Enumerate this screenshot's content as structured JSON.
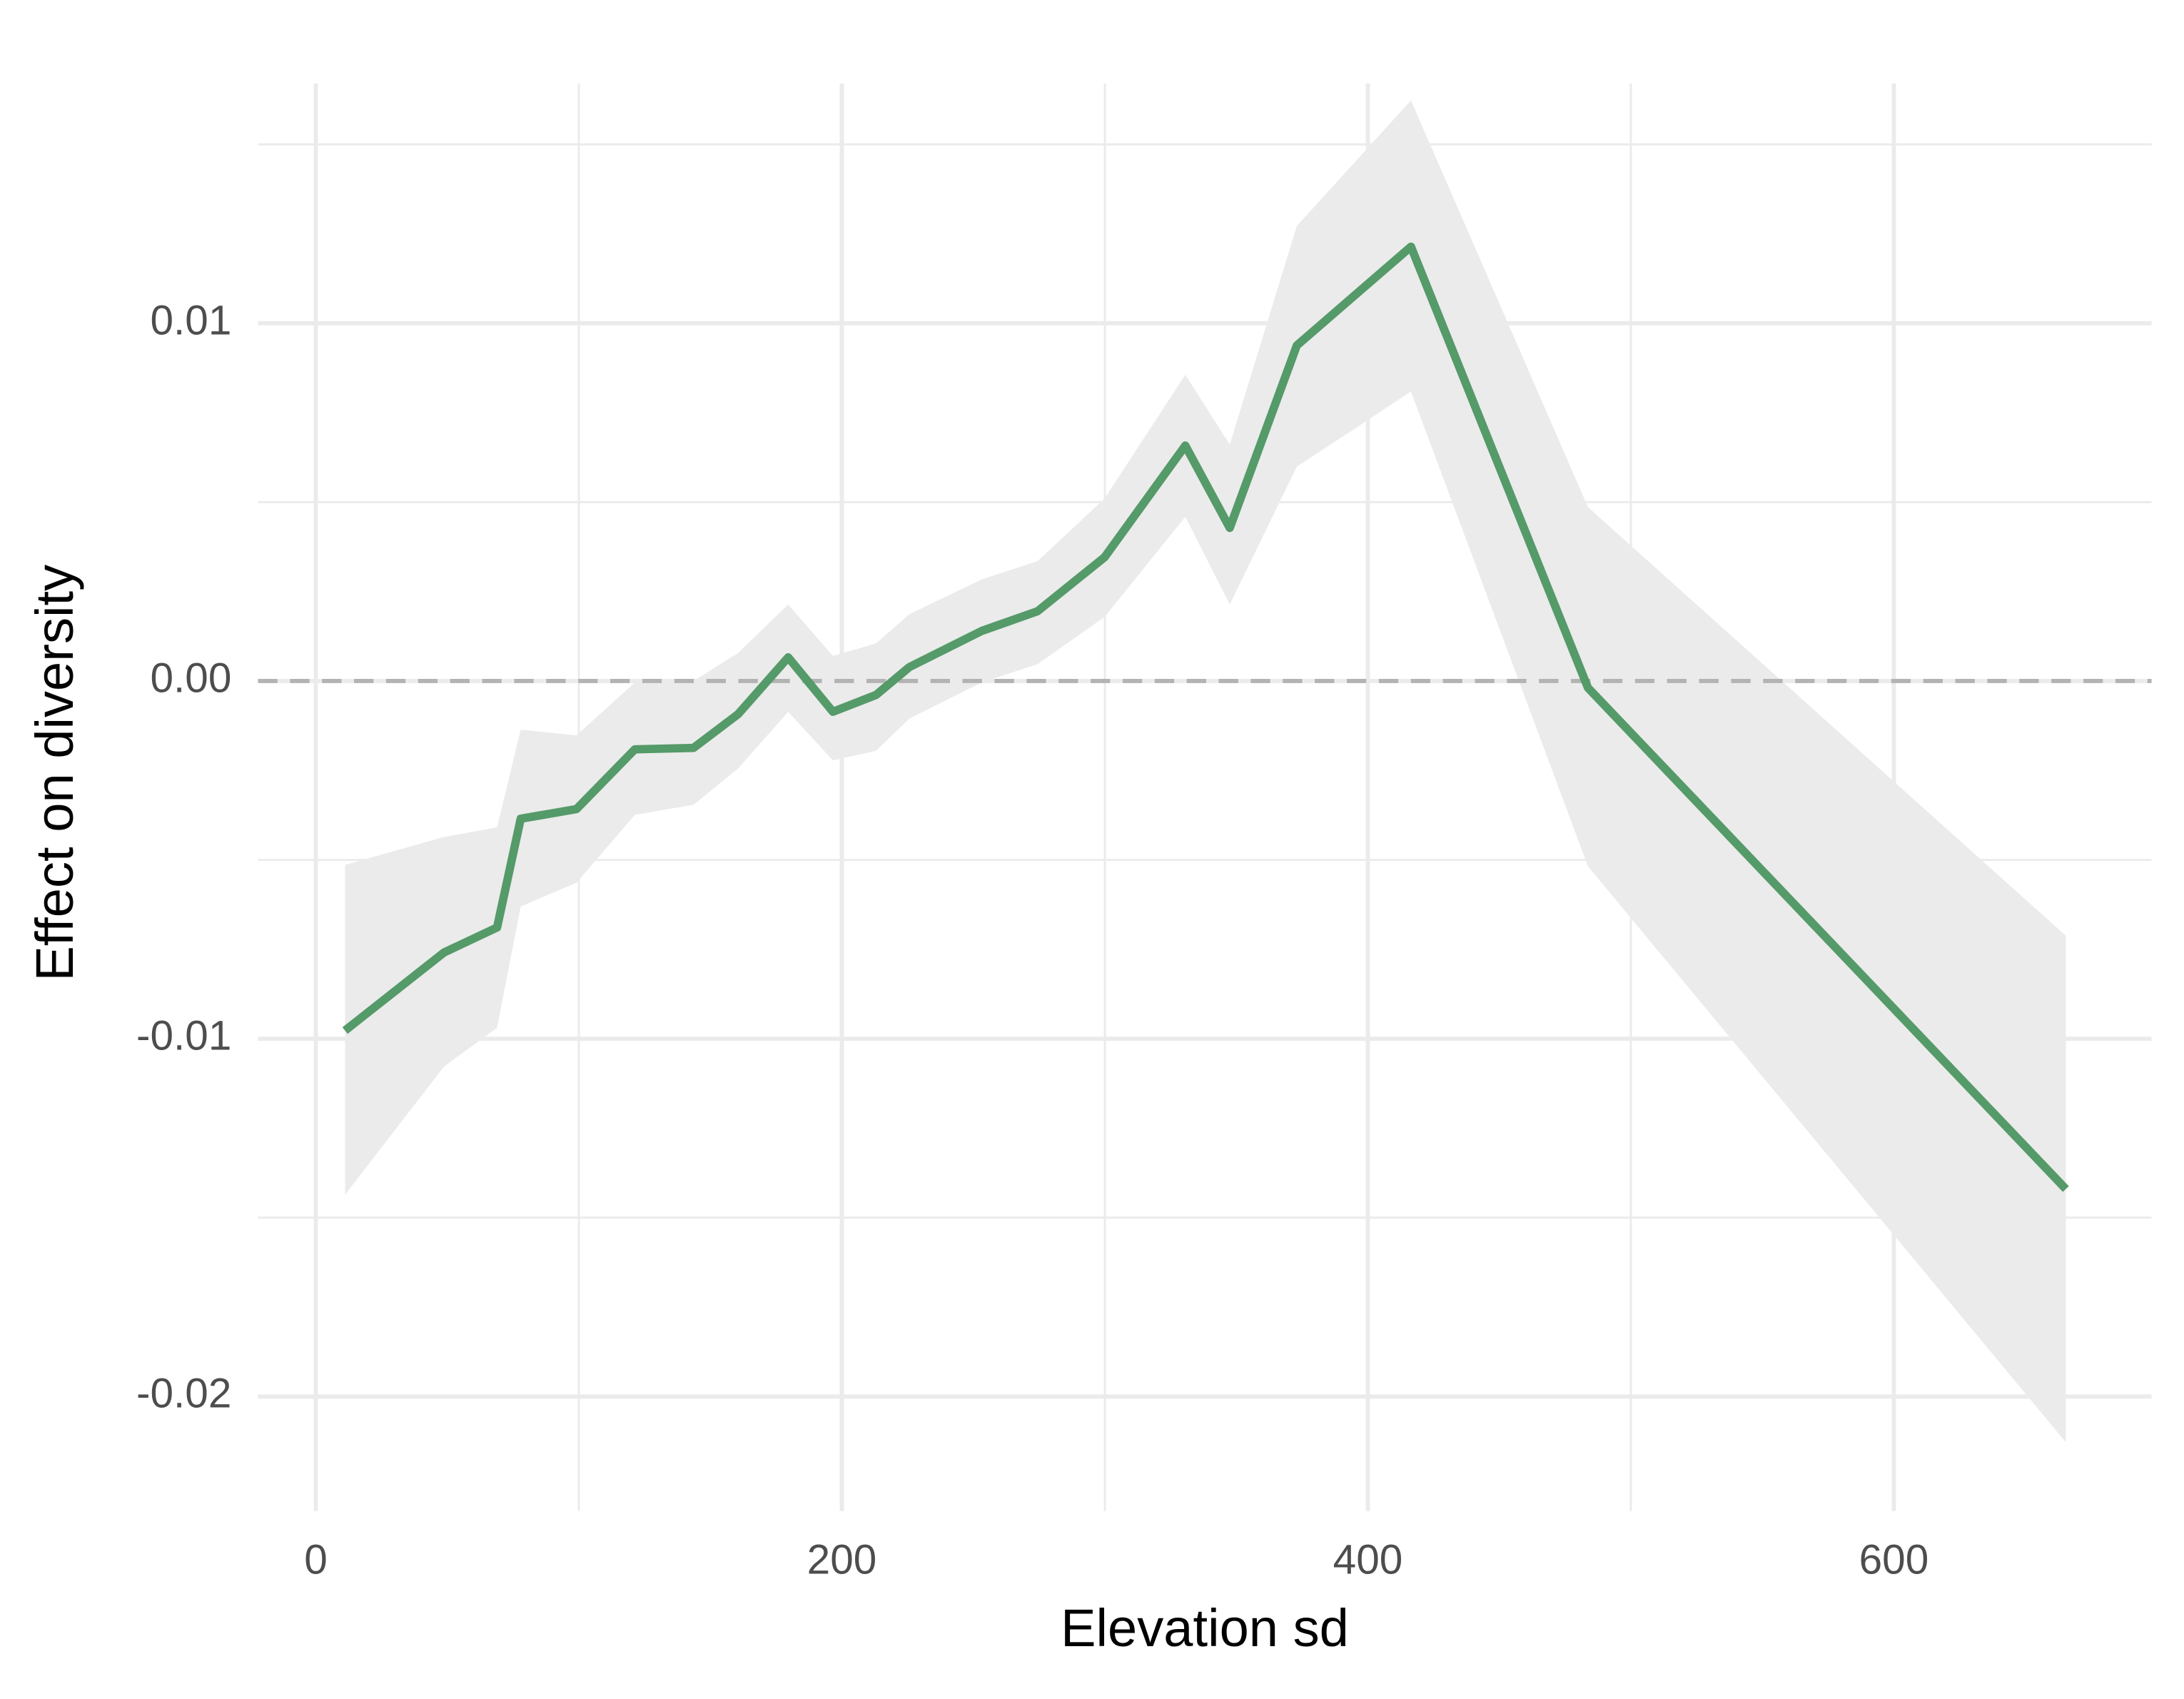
{
  "chart_data": {
    "type": "line",
    "x_label": "Elevation sd",
    "y_label": "Effect on diversity",
    "x": [
      11.1,
      48.7,
      68.9,
      77.9,
      99.1,
      121.3,
      143.6,
      160.5,
      179.6,
      196.6,
      213.0,
      225.7,
      253.2,
      274.4,
      299.9,
      330.6,
      347.5,
      373.0,
      416.4,
      483.7,
      665.4
    ],
    "series": [
      {
        "color": "#559a69",
        "ribbon_color": "#ebebeb",
        "values": [
          -0.00977,
          -0.00759,
          -0.00689,
          -0.00385,
          -0.00358,
          -0.00191,
          -0.00187,
          -0.00093,
          0.00066,
          -0.00086,
          -0.00039,
          0.00039,
          0.0014,
          0.00195,
          0.00346,
          0.00658,
          0.00428,
          0.00938,
          0.01214,
          -0.00019,
          -0.0142
        ],
        "upper": [
          -0.00514,
          -0.00436,
          -0.00409,
          -0.00136,
          -0.00152,
          -4e-05,
          0.0,
          0.00078,
          0.00214,
          0.0007,
          0.00105,
          0.00187,
          0.00284,
          0.00335,
          0.0051,
          0.00856,
          0.00661,
          0.01272,
          0.01623,
          0.00486,
          -0.00712
        ],
        "lower": [
          -0.01436,
          -0.01078,
          -0.00969,
          -0.0063,
          -0.00564,
          -0.00374,
          -0.00346,
          -0.00245,
          -0.00086,
          -0.00222,
          -0.00195,
          -0.00105,
          -4e-05,
          0.00047,
          0.00179,
          0.00459,
          0.00214,
          0.00599,
          0.00809,
          -0.00518,
          -0.02128
        ]
      }
    ],
    "xlim": [
      -22,
      698
    ],
    "ylim": [
      -0.0232,
      0.0167
    ],
    "xticks": [
      0,
      200,
      400,
      600
    ],
    "yticks": [
      -0.02,
      -0.01,
      {
        "value": 0,
        "label": "0.00"
      },
      0.01
    ],
    "x_minor_grid": [
      100,
      300,
      500
    ],
    "y_minor_grid": [
      -0.015,
      -0.005,
      0.005,
      0.015
    ],
    "hline": 0,
    "grid": true
  }
}
